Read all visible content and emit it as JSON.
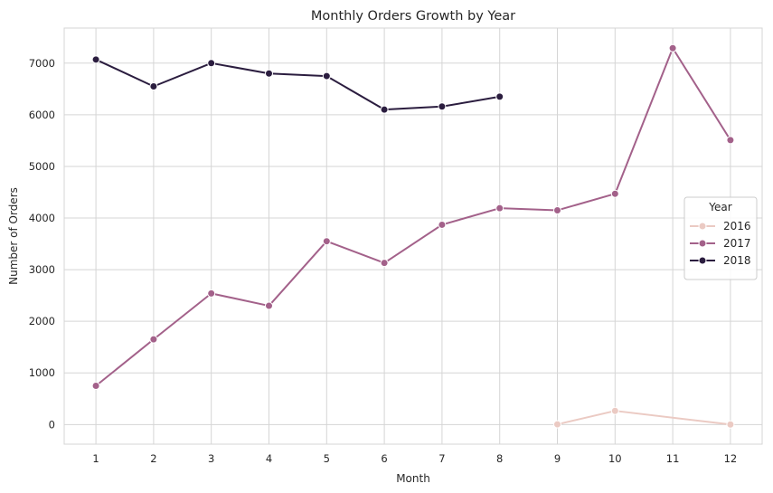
{
  "chart_data": {
    "type": "line",
    "title": "Monthly Orders Growth by Year",
    "xlabel": "Month",
    "ylabel": "Number of Orders",
    "x": [
      1,
      2,
      3,
      4,
      5,
      6,
      7,
      8,
      9,
      10,
      11,
      12
    ],
    "x_ticks": [
      "1",
      "2",
      "3",
      "4",
      "5",
      "6",
      "7",
      "8",
      "9",
      "10",
      "11",
      "12"
    ],
    "y_ticks": [
      "0",
      "1000",
      "2000",
      "3000",
      "4000",
      "5000",
      "6000",
      "7000"
    ],
    "xlim": [
      0.45,
      12.55
    ],
    "ylim": [
      -380,
      7680
    ],
    "grid": true,
    "legend": {
      "title": "Year",
      "placement": "center-right"
    },
    "series": [
      {
        "name": "2016",
        "color": "#ebcac3",
        "x": [
          9,
          10,
          12
        ],
        "values": [
          4,
          265,
          1
        ]
      },
      {
        "name": "2017",
        "color": "#a3618a",
        "x": [
          1,
          2,
          3,
          4,
          5,
          6,
          7,
          8,
          9,
          10,
          11,
          12
        ],
        "values": [
          750,
          1650,
          2540,
          2300,
          3550,
          3130,
          3870,
          4190,
          4150,
          4470,
          7290,
          5510
        ]
      },
      {
        "name": "2018",
        "color": "#2b1d3f",
        "x": [
          1,
          2,
          3,
          4,
          5,
          6,
          7,
          8
        ],
        "values": [
          7070,
          6550,
          7000,
          6800,
          6750,
          6100,
          6160,
          6350
        ]
      }
    ]
  }
}
